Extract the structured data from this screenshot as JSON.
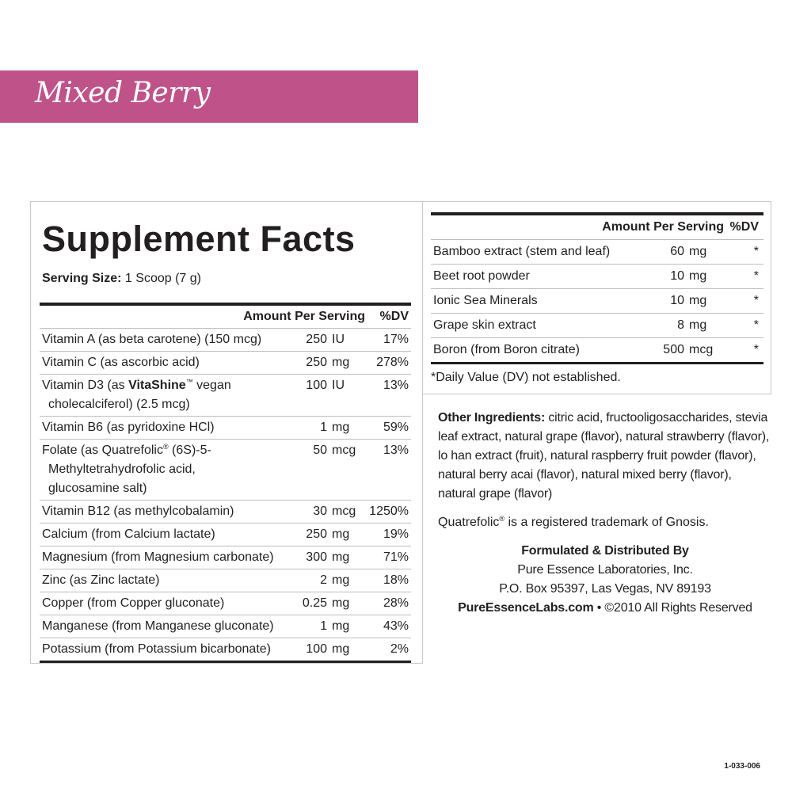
{
  "banner": {
    "flavor": "Mixed Berry",
    "color": "#c0528a"
  },
  "facts": {
    "title": "Supplement Facts",
    "serving_label": "Serving Size:",
    "serving_value": " 1 Scoop (7 g)",
    "header": {
      "amount": "Amount Per Serving",
      "dv": "%DV"
    },
    "rows": [
      {
        "name": "Vitamin A (as beta carotene) (150 mcg)",
        "amount": "250",
        "unit": "IU",
        "dv": "17%"
      },
      {
        "name": "Vitamin C (as ascorbic acid)",
        "amount": "250",
        "unit": "mg",
        "dv": "278%"
      },
      {
        "name_a": "Vitamin D3 (as ",
        "name_bold": "VitaShine",
        "name_tm": "™",
        "name_b": " vegan",
        "name_cont": "cholecalciferol) (2.5 mcg)",
        "amount": "100",
        "unit": "IU",
        "dv": "13%"
      },
      {
        "name": "Vitamin B6 (as pyridoxine HCl)",
        "amount": "1",
        "unit": "mg",
        "dv": "59%"
      },
      {
        "name_a": "Folate (as Quatrefolic",
        "name_reg": "®",
        "name_b": " (6S)-5-",
        "name_cont1": "Methyltetrahydrofolic acid,",
        "name_cont2": "glucosamine salt)",
        "amount": "50",
        "unit": "mcg",
        "dv": "13%"
      },
      {
        "name": "Vitamin B12 (as methylcobalamin)",
        "amount": "30",
        "unit": "mcg",
        "dv": "1250%"
      },
      {
        "name": "Calcium (from Calcium lactate)",
        "amount": "250",
        "unit": "mg",
        "dv": "19%"
      },
      {
        "name": "Magnesium (from Magnesium carbonate)",
        "amount": "300",
        "unit": "mg",
        "dv": "71%"
      },
      {
        "name": "Zinc (as Zinc lactate)",
        "amount": "2",
        "unit": "mg",
        "dv": "18%"
      },
      {
        "name": "Copper (from Copper gluconate)",
        "amount": "0.25",
        "unit": "mg",
        "dv": "28%"
      },
      {
        "name": "Manganese (from Manganese gluconate)",
        "amount": "1",
        "unit": "mg",
        "dv": "43%"
      },
      {
        "name": "Potassium (from Potassium bicarbonate)",
        "amount": "100",
        "unit": "mg",
        "dv": "2%"
      }
    ]
  },
  "other_facts": {
    "header": {
      "amount": "Amount Per Serving",
      "dv": "%DV"
    },
    "rows": [
      {
        "name": "Bamboo extract (stem and leaf)",
        "amount": "60",
        "unit": "mg",
        "dv": "*"
      },
      {
        "name": "Beet root powder",
        "amount": "10",
        "unit": "mg",
        "dv": "*"
      },
      {
        "name": "Ionic Sea Minerals",
        "amount": "10",
        "unit": "mg",
        "dv": "*"
      },
      {
        "name": "Grape skin extract",
        "amount": "8",
        "unit": "mg",
        "dv": "*"
      },
      {
        "name": "Boron (from Boron citrate)",
        "amount": "500",
        "unit": "mcg",
        "dv": "*"
      }
    ],
    "footnote": "*Daily Value (DV) not established."
  },
  "other_ingredients": {
    "label": "Other Ingredients:",
    "text": " citric acid, fructooligosaccharides, stevia leaf extract, natural grape (flavor), natural strawberry (flavor), lo han extract (fruit), natural raspberry fruit powder (flavor), natural berry acai (flavor), natural mixed berry (flavor), natural grape (flavor)"
  },
  "trademark": {
    "a": "Quatrefolic",
    "reg": "®",
    "b": " is a registered trademark of Gnosis."
  },
  "company": {
    "heading": "Formulated & Distributed By",
    "name": "Pure Essence Laboratories, Inc.",
    "address": "P.O. Box 95397, Las Vegas, NV 89193",
    "website": "PureEssenceLabs.com",
    "copyright": " • ©2010 All Rights Reserved"
  },
  "product_code": "1-033-006"
}
